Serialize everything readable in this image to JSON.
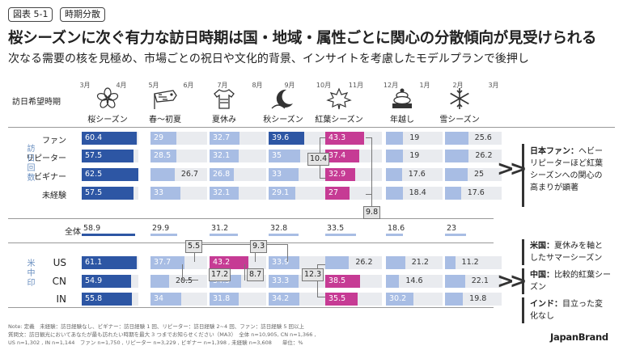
{
  "header": {
    "figure_tag": "図表 5-1",
    "topic_tag": "時期分散"
  },
  "title": "桜シーズンに次ぐ有力な訪日時期は国・地域・属性ごとに関心の分散傾向が見受けられる",
  "subtitle": "次なる需要の核を見極め、市場ごとの祝日や文化的背景、インサイトを考慮したモデルプランで後押し",
  "axis_label": "訪日希望時期",
  "months": [
    "3月",
    "4月",
    "5月",
    "6月",
    "7月",
    "8月",
    "9月",
    "10月",
    "11月",
    "12月",
    "1月",
    "2月",
    "3月"
  ],
  "seasons": [
    {
      "label": "桜シーズン",
      "icon": "sakura-icon"
    },
    {
      "label": "春〜初夏",
      "icon": "koinobori-icon"
    },
    {
      "label": "夏休み",
      "icon": "tshirt-icon"
    },
    {
      "label": "秋シーズン",
      "icon": "moon-icon"
    },
    {
      "label": "紅葉シーズン",
      "icon": "maple-leaf-icon"
    },
    {
      "label": "年越し",
      "icon": "kagami-mochi-icon"
    },
    {
      "label": "雪シーズン",
      "icon": "snowflake-icon"
    }
  ],
  "group_labels": {
    "experience": "訪日回数",
    "market": "米中印"
  },
  "colors": {
    "dark_blue": "#2d56a4",
    "light_blue": "#a8bde4",
    "pink": "#c63b94",
    "cell_bg": "#e9ebef"
  },
  "chart_data": {
    "type": "table",
    "rows": [
      {
        "label": "ファン",
        "values": [
          60.4,
          29,
          32.7,
          39.6,
          43.3,
          19,
          25.6
        ]
      },
      {
        "label": "リピーター",
        "values": [
          57.5,
          28.5,
          32.1,
          35,
          37.4,
          19,
          26.2
        ]
      },
      {
        "label": "ビギナー",
        "values": [
          62.5,
          26.7,
          26.8,
          33,
          32.9,
          17.6,
          25
        ]
      },
      {
        "label": "未経験",
        "values": [
          57.5,
          33,
          32.1,
          29.1,
          27,
          18.4,
          17.6
        ]
      },
      {
        "label": "全体",
        "values": [
          58.9,
          29.9,
          31.2,
          32.8,
          33.5,
          18.6,
          23
        ]
      },
      {
        "label": "US",
        "values": [
          61.1,
          37.7,
          43.2,
          33.9,
          26.2,
          21.2,
          11.2
        ]
      },
      {
        "label": "CN",
        "values": [
          54.9,
          20.5,
          34.5,
          33.3,
          38.5,
          14.6,
          22.1
        ]
      },
      {
        "label": "IN",
        "values": [
          55.8,
          34,
          31.8,
          34.2,
          35.5,
          30.2,
          19.8
        ]
      }
    ],
    "diffs": [
      "10.4",
      "9.8",
      "5.5",
      "9.3",
      "17.2",
      "8.7",
      "12.3"
    ]
  },
  "notes": {
    "japan_fan_head": "日本ファン：",
    "japan_fan_body": [
      "ヘビー",
      "リピーターほど紅葉",
      "シーズンへの関心の",
      "高まりが顕著"
    ],
    "us_head": "米国：",
    "us_body": [
      "夏休みを軸と",
      "したサマーシーズン"
    ],
    "cn_head": "中国：",
    "cn_body": [
      "比較的紅葉シー",
      "ズン"
    ],
    "in_head": "インド：",
    "in_body": [
      "目立った変",
      "化なし"
    ]
  },
  "footnotes": [
    "Note: 定義　未経験：訪日経験なし、ビギナー：訪日経験 1 回、リピーター：訪日経験 2~4 回、ファン：訪日経験 5 回以上",
    "質問文：訪日観光においてあなたが最も訪れたい時期を最大 3 つまでお知らせください（MA3）　全体 n=10,905, CN n=1,366 ,",
    "US n=1,302 , IN n=1,144　ファン n=1,750 , リピーター n=3,229 , ビギナー n=1,398 , 未経験 n=3,608　　単位：%"
  ],
  "brand": "JapanBrand"
}
